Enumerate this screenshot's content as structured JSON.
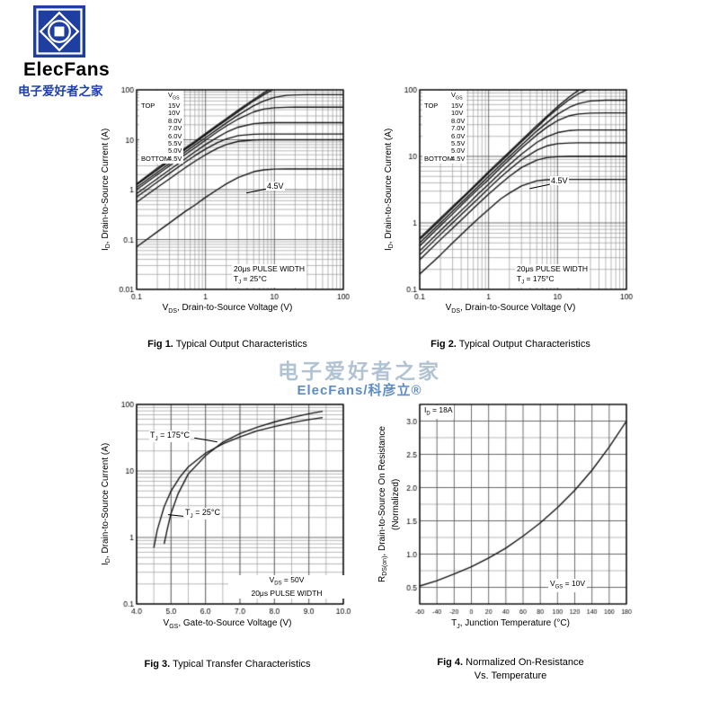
{
  "page": {
    "logo": {
      "brand": "ElecFans",
      "tagline": "电子爱好者之家"
    },
    "watermark": {
      "line1": "电子爱好者之家",
      "line2": "ElecFans/科彦立®"
    }
  },
  "figures": [
    {
      "caption_label": "Fig 1.",
      "caption_text": " Typical Output Characteristics",
      "xlabel": [
        [
          "n",
          "V"
        ],
        [
          "s",
          "DS"
        ],
        [
          "n",
          ", Drain-to-Source Voltage (V)"
        ]
      ],
      "ylabel": [
        [
          "n",
          "I"
        ],
        [
          "s",
          "D"
        ],
        [
          "n",
          ", Drain-to-Source Current (A)"
        ]
      ],
      "legend": {
        "header": [
          [
            "n",
            "V"
          ],
          [
            "s",
            "GS"
          ]
        ],
        "rows": [
          [
            "TOP",
            "15V"
          ],
          [
            "",
            "10V"
          ],
          [
            "",
            "8.0V"
          ],
          [
            "",
            "7.0V"
          ],
          [
            "",
            "6.0V"
          ],
          [
            "",
            "5.5V"
          ],
          [
            "",
            "5.0V"
          ],
          [
            "BOTTOM",
            "4.5V"
          ]
        ]
      },
      "notes": [
        [
          [
            "n",
            "20μs PULSE WIDTH"
          ]
        ],
        [
          [
            "n",
            "T"
          ],
          [
            "s",
            "J"
          ],
          [
            "n",
            " = 25°C"
          ]
        ]
      ],
      "curve_label": [
        [
          "n",
          "4.5V"
        ]
      ]
    },
    {
      "caption_label": "Fig 2.",
      "caption_text": " Typical Output Characteristics",
      "xlabel": [
        [
          "n",
          "V"
        ],
        [
          "s",
          "DS"
        ],
        [
          "n",
          ", Drain-to-Source Voltage (V)"
        ]
      ],
      "ylabel": [
        [
          "n",
          "I"
        ],
        [
          "s",
          "D"
        ],
        [
          "n",
          ", Drain-to-Source Current (A)"
        ]
      ],
      "legend": {
        "header": [
          [
            "n",
            "V"
          ],
          [
            "s",
            "GS"
          ]
        ],
        "rows": [
          [
            "TOP",
            "15V"
          ],
          [
            "",
            "10V"
          ],
          [
            "",
            "8.0V"
          ],
          [
            "",
            "7.0V"
          ],
          [
            "",
            "6.0V"
          ],
          [
            "",
            "5.5V"
          ],
          [
            "",
            "5.0V"
          ],
          [
            "BOTTOM",
            "4.5V"
          ]
        ]
      },
      "notes": [
        [
          [
            "n",
            "20μs PULSE WIDTH"
          ]
        ],
        [
          [
            "n",
            "T"
          ],
          [
            "s",
            "J"
          ],
          [
            "n",
            " = 175°C"
          ]
        ]
      ],
      "curve_label": [
        [
          "n",
          "4.5V"
        ]
      ]
    },
    {
      "caption_label": "Fig 3.",
      "caption_text": " Typical Transfer Characteristics",
      "xlabel": [
        [
          "n",
          "V"
        ],
        [
          "s",
          "GS"
        ],
        [
          "n",
          ", Gate-to-Source Voltage (V)"
        ]
      ],
      "ylabel": [
        [
          "n",
          "I"
        ],
        [
          "s",
          "D"
        ],
        [
          "n",
          ", Drain-to-Source Current (A)"
        ]
      ],
      "labels": {
        "t175": [
          [
            "n",
            "T"
          ],
          [
            "s",
            "J"
          ],
          [
            "n",
            " = 175°C"
          ]
        ],
        "t25": [
          [
            "n",
            "T"
          ],
          [
            "s",
            "J"
          ],
          [
            "n",
            " = 25°C"
          ]
        ]
      },
      "notes": [
        [
          [
            "n",
            "V"
          ],
          [
            "s",
            "DS"
          ],
          [
            "n",
            " = 50V"
          ]
        ],
        [
          [
            "n",
            "20μs PULSE WIDTH"
          ]
        ]
      ]
    },
    {
      "caption_label": "Fig 4.",
      "caption_text": " Normalized On-Resistance",
      "caption_line2": "Vs. Temperature",
      "xlabel": [
        [
          "n",
          "T"
        ],
        [
          "s",
          "J"
        ],
        [
          "n",
          ", Junction Temperature (°C)"
        ]
      ],
      "ylabel": [
        [
          "n",
          "R"
        ],
        [
          "s",
          "DS(on)"
        ],
        [
          "n",
          ", Drain-to-Source On Resistance"
        ],
        [
          "b",
          ""
        ],
        [
          "n",
          "(Normalized)"
        ]
      ],
      "notes_tl": [
        [
          "n",
          "I"
        ],
        [
          "s",
          "D"
        ],
        [
          "n",
          " = 18A"
        ]
      ],
      "notes_br": [
        [
          "n",
          "V"
        ],
        [
          "s",
          "GS"
        ],
        [
          "n",
          " = 10V"
        ]
      ]
    }
  ],
  "chart_data": [
    {
      "type": "line",
      "title": "Fig 1. Typical Output Characteristics",
      "xlabel": "VDS, Drain-to-Source Voltage (V)",
      "ylabel": "ID, Drain-to-Source Current (A)",
      "xscale": "log",
      "yscale": "log",
      "xlim": [
        0.1,
        100
      ],
      "ylim": [
        0.01,
        100
      ],
      "xticks": {
        "values": [
          0.1,
          1,
          10,
          100
        ],
        "labels": [
          "0.1",
          "1",
          "10",
          "100"
        ]
      },
      "yticks": {
        "values": [
          0.01,
          0.1,
          1,
          10,
          100
        ],
        "labels": [
          "0.01",
          "0.1",
          "1",
          "10",
          "100"
        ]
      },
      "xminor": null,
      "yminor": null,
      "legend_position": "top-left inside",
      "conditions": [
        "20μs PULSE WIDTH",
        "TJ = 25°C"
      ],
      "annotations": [
        "4.5V"
      ],
      "x": [
        0.1,
        0.2,
        0.3,
        0.5,
        0.7,
        1,
        1.5,
        2,
        3,
        5,
        7,
        10,
        15,
        20,
        30,
        50,
        70,
        100
      ],
      "series": [
        {
          "name": "VGS = 15V",
          "y": [
            1.3,
            2.7,
            4.0,
            6.7,
            9.3,
            13.3,
            19.9,
            26.5,
            39.5,
            64,
            87,
            117,
            152,
            174,
            193,
            199,
            200,
            200
          ]
        },
        {
          "name": "VGS = 10V",
          "y": [
            1.25,
            2.5,
            3.75,
            6.3,
            8.7,
            12.5,
            18.7,
            24.8,
            36.8,
            60,
            80,
            105,
            132,
            146,
            157,
            160,
            160,
            160
          ]
        },
        {
          "name": "VGS = 8.0V",
          "y": [
            1.11,
            2.22,
            3.33,
            5.6,
            7.8,
            11.0,
            16.4,
            21.7,
            31.5,
            48,
            60,
            70.6,
            77.6,
            79.4,
            80,
            80,
            80,
            80
          ]
        },
        {
          "name": "VGS = 7.0V",
          "y": [
            1.0,
            2.0,
            3.0,
            5.0,
            6.9,
            9.8,
            14.5,
            18.8,
            26.2,
            36.2,
            41.2,
            43.9,
            44.9,
            45,
            45,
            45,
            45,
            45
          ]
        },
        {
          "name": "VGS = 6.0V",
          "y": [
            0.83,
            1.66,
            2.49,
            4.1,
            5.7,
            8.0,
            11.3,
            14.1,
            17.9,
            21.0,
            21.8,
            22,
            22,
            22,
            22,
            22,
            22,
            22
          ]
        },
        {
          "name": "VGS = 5.5V",
          "y": [
            0.71,
            1.42,
            2.12,
            3.5,
            4.8,
            6.5,
            8.8,
            10.4,
            12.1,
            12.9,
            13,
            13,
            13,
            13,
            13,
            13,
            13,
            13
          ]
        },
        {
          "name": "VGS = 5.0V",
          "y": [
            0.56,
            1.11,
            1.65,
            2.7,
            3.7,
            5.0,
            6.8,
            8.0,
            9.3,
            9.9,
            10,
            10,
            10,
            10,
            10,
            10,
            10,
            10
          ]
        },
        {
          "name": "VGS = 4.5V",
          "y": [
            0.071,
            0.143,
            0.214,
            0.36,
            0.49,
            0.7,
            1.01,
            1.3,
            1.76,
            2.29,
            2.49,
            2.58,
            2.6,
            2.6,
            2.6,
            2.6,
            2.6,
            2.6
          ]
        }
      ]
    },
    {
      "type": "line",
      "title": "Fig 2. Typical Output Characteristics",
      "xlabel": "VDS, Drain-to-Source Voltage (V)",
      "ylabel": "ID, Drain-to-Source Current (A)",
      "xscale": "log",
      "yscale": "log",
      "xlim": [
        0.1,
        100
      ],
      "ylim": [
        0.1,
        100
      ],
      "xticks": {
        "values": [
          0.1,
          1,
          10,
          100
        ],
        "labels": [
          "0.1",
          "1",
          "10",
          "100"
        ]
      },
      "yticks": {
        "values": [
          0.1,
          1,
          10,
          100
        ],
        "labels": [
          "0.1",
          "1",
          "10",
          "100"
        ]
      },
      "xminor": null,
      "yminor": null,
      "legend_position": "top-left inside",
      "conditions": [
        "20μs PULSE WIDTH",
        "TJ = 175°C"
      ],
      "annotations": [
        "4.5V"
      ],
      "x": [
        0.1,
        0.2,
        0.3,
        0.5,
        0.7,
        1,
        1.5,
        2,
        3,
        5,
        7,
        10,
        15,
        20,
        30,
        50,
        70,
        100
      ],
      "series": [
        {
          "name": "VGS = 15V",
          "y": [
            0.59,
            1.18,
            1.76,
            2.9,
            4.1,
            5.9,
            8.8,
            11.7,
            17.5,
            29,
            40,
            56,
            79,
            98,
            124,
            144,
            149,
            150
          ]
        },
        {
          "name": "VGS = 10V",
          "y": [
            0.56,
            1.11,
            1.67,
            2.8,
            3.9,
            5.6,
            8.3,
            11.1,
            16.6,
            27,
            38,
            52,
            72,
            87,
            106,
            118,
            120,
            120
          ]
        },
        {
          "name": "VGS = 8.0V",
          "y": [
            0.5,
            1.0,
            1.5,
            2.5,
            3.5,
            5.0,
            7.5,
            9.9,
            14.8,
            24,
            32,
            43,
            55,
            62,
            68,
            70,
            70,
            70
          ]
        },
        {
          "name": "VGS = 7.0V",
          "y": [
            0.45,
            0.91,
            1.36,
            2.3,
            3.2,
            4.5,
            6.8,
            9.0,
            13.3,
            21,
            27.4,
            34.5,
            40.9,
            43.4,
            44.8,
            45,
            45,
            45
          ]
        },
        {
          "name": "VGS = 6.0V",
          "y": [
            0.38,
            0.77,
            1.15,
            1.9,
            2.7,
            3.8,
            5.7,
            7.5,
            10.8,
            16.2,
            19.8,
            22.8,
            24.5,
            24.9,
            25,
            25,
            25,
            25
          ]
        },
        {
          "name": "VGS = 5.5V",
          "y": [
            0.33,
            0.67,
            1.0,
            1.66,
            2.3,
            3.3,
            4.9,
            6.3,
            8.9,
            12.4,
            14.4,
            15.5,
            15.9,
            16,
            16,
            16,
            16,
            16
          ]
        },
        {
          "name": "VGS = 5.0V",
          "y": [
            0.28,
            0.56,
            0.83,
            1.38,
            1.92,
            2.7,
            3.9,
            5.0,
            6.8,
            8.8,
            9.6,
            9.9,
            10,
            10,
            10,
            10,
            10,
            10
          ]
        },
        {
          "name": "VGS = 4.5V",
          "y": [
            0.17,
            0.33,
            0.5,
            0.83,
            1.15,
            1.59,
            2.3,
            2.8,
            3.6,
            4.3,
            4.45,
            4.5,
            4.5,
            4.5,
            4.5,
            4.5,
            4.5,
            4.5
          ]
        }
      ]
    },
    {
      "type": "line",
      "title": "Fig 3. Typical Transfer Characteristics",
      "xlabel": "VGS, Gate-to-Source Voltage (V)",
      "ylabel": "ID, Drain-to-Source Current (A)",
      "xscale": "linear",
      "yscale": "log",
      "xlim": [
        4,
        10
      ],
      "ylim": [
        0.1,
        100
      ],
      "xticks": {
        "values": [
          4,
          5,
          6,
          7,
          8,
          9,
          10
        ],
        "labels": [
          "4.0",
          "5.0",
          "6.0",
          "7.0",
          "8.0",
          "9.0",
          "10.0"
        ]
      },
      "yticks": {
        "values": [
          0.1,
          1,
          10,
          100
        ],
        "labels": [
          "0.1",
          "1",
          "10",
          "100"
        ]
      },
      "xminor": 0.5,
      "yminor": null,
      "conditions": [
        "VDS = 50V",
        "20μs PULSE WIDTH"
      ],
      "annotations": [
        "TJ = 175°C",
        "TJ = 25°C"
      ],
      "series": [
        {
          "name": "TJ = 175°C",
          "x": [
            4.5,
            4.6,
            4.8,
            5.0,
            5.25,
            5.5,
            6.0,
            6.5,
            7.0,
            7.5,
            8.0,
            8.5,
            9.0,
            9.4
          ],
          "y": [
            0.7,
            1.3,
            2.9,
            5.0,
            8.0,
            11.5,
            18.5,
            25.5,
            32.5,
            40,
            46.5,
            53,
            59,
            63.5
          ]
        },
        {
          "name": "TJ = 25°C",
          "x": [
            4.8,
            4.9,
            5.0,
            5.2,
            5.5,
            6.0,
            6.5,
            7.0,
            7.5,
            8.0,
            8.5,
            9.0,
            9.4
          ],
          "y": [
            0.8,
            1.4,
            2.3,
            4.5,
            9.0,
            17,
            27,
            36.5,
            45.5,
            54.5,
            63.5,
            72.5,
            79
          ]
        }
      ]
    },
    {
      "type": "line",
      "title": "Fig 4. Normalized On-Resistance Vs. Temperature",
      "xlabel": "TJ, Junction Temperature (°C)",
      "ylabel": "RDS(on), Drain-to-Source On Resistance (Normalized)",
      "xscale": "linear",
      "yscale": "linear",
      "xlim": [
        -60,
        180
      ],
      "ylim": [
        0.25,
        3.25
      ],
      "xticks": {
        "values": [
          -60,
          -40,
          -20,
          0,
          20,
          40,
          60,
          80,
          100,
          120,
          140,
          160,
          180
        ],
        "labels": [
          "-60",
          "-40",
          "-20",
          "0",
          "20",
          "40",
          "60",
          "80",
          "100",
          "120",
          "140",
          "160",
          "180"
        ]
      },
      "yticks": {
        "values": [
          0.5,
          1.0,
          1.5,
          2.0,
          2.5,
          3.0
        ],
        "labels": [
          "0.5",
          "1.0",
          "1.5",
          "2.0",
          "2.5",
          "3.0"
        ]
      },
      "xminor": null,
      "yminor": 0.25,
      "conditions": [
        "ID = 18A",
        "VGS = 10V"
      ],
      "annotations": [],
      "series": [
        {
          "name": "RDS(on) normalized",
          "x": [
            -60,
            -40,
            -20,
            0,
            20,
            40,
            60,
            80,
            100,
            120,
            140,
            160,
            180
          ],
          "y": [
            0.52,
            0.6,
            0.7,
            0.81,
            0.94,
            1.09,
            1.27,
            1.47,
            1.7,
            1.96,
            2.26,
            2.61,
            3.0
          ]
        }
      ]
    }
  ]
}
